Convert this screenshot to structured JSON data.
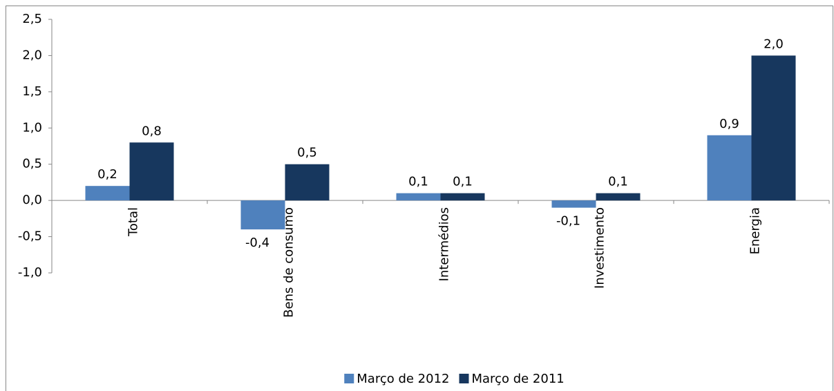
{
  "chart_data": {
    "type": "bar",
    "categories": [
      "Total",
      "Bens de consumo",
      "Intermédios",
      "Investimento",
      "Energia"
    ],
    "series": [
      {
        "name": "Março de 2012",
        "color": "#4f81bd",
        "values": [
          0.2,
          -0.4,
          0.1,
          -0.1,
          0.9
        ],
        "value_labels": [
          "0,2",
          "-0,4",
          "0,1",
          "-0,1",
          "0,9"
        ]
      },
      {
        "name": "Março de 2011",
        "color": "#17375e",
        "values": [
          0.8,
          0.5,
          0.1,
          0.1,
          2.0
        ],
        "value_labels": [
          "0,8",
          "0,5",
          "0,1",
          "0,1",
          "2,0"
        ]
      }
    ],
    "ylim": [
      -1.0,
      2.5
    ],
    "yticks": [
      {
        "value": -1.0,
        "label": "-1,0"
      },
      {
        "value": -0.5,
        "label": "-0,5"
      },
      {
        "value": 0,
        "label": "0,0"
      },
      {
        "value": 0.5,
        "label": "0,5"
      },
      {
        "value": 1.0,
        "label": "1,0"
      },
      {
        "value": 1.5,
        "label": "1,5"
      },
      {
        "value": 2.0,
        "label": "2,0"
      },
      {
        "value": 2.5,
        "label": "2,5"
      }
    ],
    "grid": false,
    "legend": "bottom"
  }
}
